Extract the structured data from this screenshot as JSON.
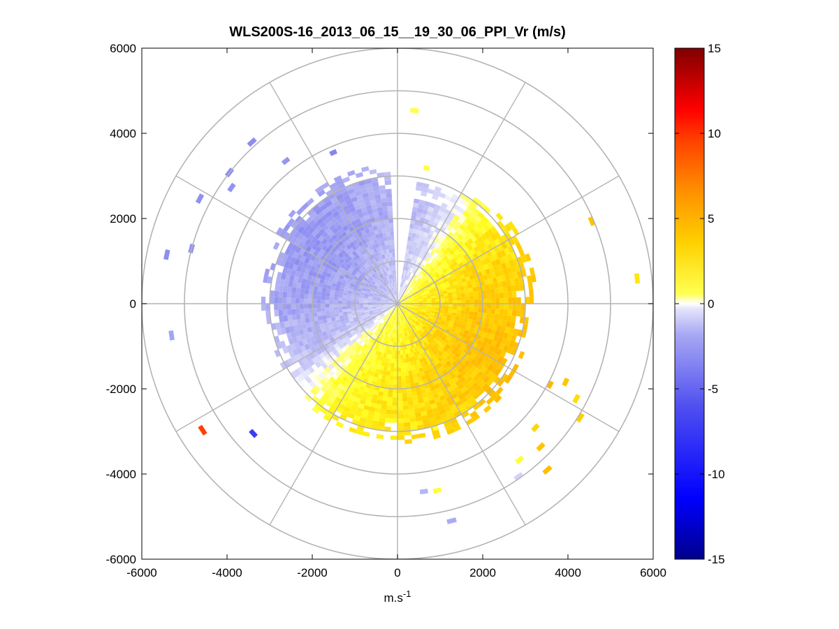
{
  "chart_data": {
    "type": "heatmap",
    "subtype": "polar-ppi",
    "title": "WLS200S-16_2013_06_15__19_30_06_PPI_Vr (m/s)",
    "xlabel_base": "m.s",
    "xlabel_sup": "-1",
    "ylabel": "",
    "xlim": [
      -6000,
      6000
    ],
    "ylim": [
      -6000,
      6000
    ],
    "x_ticks": [
      "-6000",
      "-4000",
      "-2000",
      "0",
      "2000",
      "4000",
      "6000"
    ],
    "y_ticks": [
      "6000",
      "4000",
      "2000",
      "0",
      "-2000",
      "-4000",
      "-6000"
    ],
    "polar_rings": [
      1000,
      2000,
      3000,
      4000,
      5000,
      6000
    ],
    "polar_spokes_deg": [
      0,
      30,
      60,
      90,
      120,
      150,
      180,
      210,
      240,
      270,
      300,
      330
    ],
    "colorbar": {
      "range": [
        -15,
        15
      ],
      "ticks": [
        "15",
        "10",
        "5",
        "0",
        "-5",
        "-10",
        "-15"
      ],
      "colors_low_to_high": [
        "#00008b",
        "#0000ff",
        "#6e6ef0",
        "#dcdcf8",
        "#ffffff",
        "#ffff60",
        "#ffd000",
        "#ff8000",
        "#ff0000",
        "#8b0000"
      ]
    },
    "core_region": {
      "range_max_by_azimuth_deg": [
        [
          0,
          2900
        ],
        [
          20,
          2800
        ],
        [
          35,
          3000
        ],
        [
          50,
          3200
        ],
        [
          70,
          3300
        ],
        [
          90,
          3100
        ],
        [
          110,
          3100
        ],
        [
          130,
          3200
        ],
        [
          150,
          3300
        ],
        [
          170,
          3300
        ],
        [
          185,
          3100
        ],
        [
          200,
          3200
        ],
        [
          220,
          3100
        ],
        [
          240,
          3000
        ],
        [
          255,
          3050
        ],
        [
          270,
          3200
        ],
        [
          285,
          3100
        ],
        [
          300,
          3200
        ],
        [
          315,
          3250
        ],
        [
          330,
          3250
        ],
        [
          345,
          3300
        ]
      ],
      "velocity_by_azimuth_deg": [
        [
          0,
          -2.0
        ],
        [
          15,
          -1.5
        ],
        [
          30,
          -0.3
        ],
        [
          40,
          1.0
        ],
        [
          60,
          2.4
        ],
        [
          90,
          3.2
        ],
        [
          120,
          3.6
        ],
        [
          150,
          3.0
        ],
        [
          180,
          2.2
        ],
        [
          210,
          1.6
        ],
        [
          225,
          0.3
        ],
        [
          240,
          -1.6
        ],
        [
          270,
          -2.6
        ],
        [
          300,
          -3.1
        ],
        [
          330,
          -2.8
        ],
        [
          360,
          -2.0
        ]
      ],
      "gap_azimuth_deg": [
        358,
        9
      ]
    },
    "sparse_gates": [
      {
        "az": 337,
        "r": 3800,
        "v": -4.0
      },
      {
        "az": 322,
        "r": 4200,
        "v": -3.2
      },
      {
        "az": 318,
        "r": 5050,
        "v": -3.6
      },
      {
        "az": 305,
        "r": 4700,
        "v": -3.3
      },
      {
        "az": 308,
        "r": 4950,
        "v": -3.7
      },
      {
        "az": 298,
        "r": 5200,
        "v": -3.5
      },
      {
        "az": 285,
        "r": 4950,
        "v": -3.3
      },
      {
        "az": 282,
        "r": 5480,
        "v": -3.6
      },
      {
        "az": 262,
        "r": 5300,
        "v": -2.6
      },
      {
        "az": 237,
        "r": 5400,
        "v": 8.0
      },
      {
        "az": 228,
        "r": 4500,
        "v": -8.0
      },
      {
        "az": 5,
        "r": 4500,
        "v": 1.1
      },
      {
        "az": 12,
        "r": 3200,
        "v": 1.2
      },
      {
        "az": 67,
        "r": 4900,
        "v": 3.5
      },
      {
        "az": 84,
        "r": 5600,
        "v": 2.3
      },
      {
        "az": 118,
        "r": 4000,
        "v": 4.0
      },
      {
        "az": 115,
        "r": 4300,
        "v": 3.4
      },
      {
        "az": 118,
        "r": 4700,
        "v": 2.6
      },
      {
        "az": 122,
        "r": 5000,
        "v": 3.0
      },
      {
        "az": 132,
        "r": 4300,
        "v": 2.8
      },
      {
        "az": 135,
        "r": 4700,
        "v": 3.5
      },
      {
        "az": 138,
        "r": 5200,
        "v": 3.7
      },
      {
        "az": 142,
        "r": 4600,
        "v": 1.3
      },
      {
        "az": 145,
        "r": 4900,
        "v": -1.0
      },
      {
        "az": 163,
        "r": 3000,
        "v": 1.4
      },
      {
        "az": 168,
        "r": 4430,
        "v": 1.2
      },
      {
        "az": 172,
        "r": 4400,
        "v": -2.0
      },
      {
        "az": 166,
        "r": 5200,
        "v": -2.4
      }
    ]
  }
}
